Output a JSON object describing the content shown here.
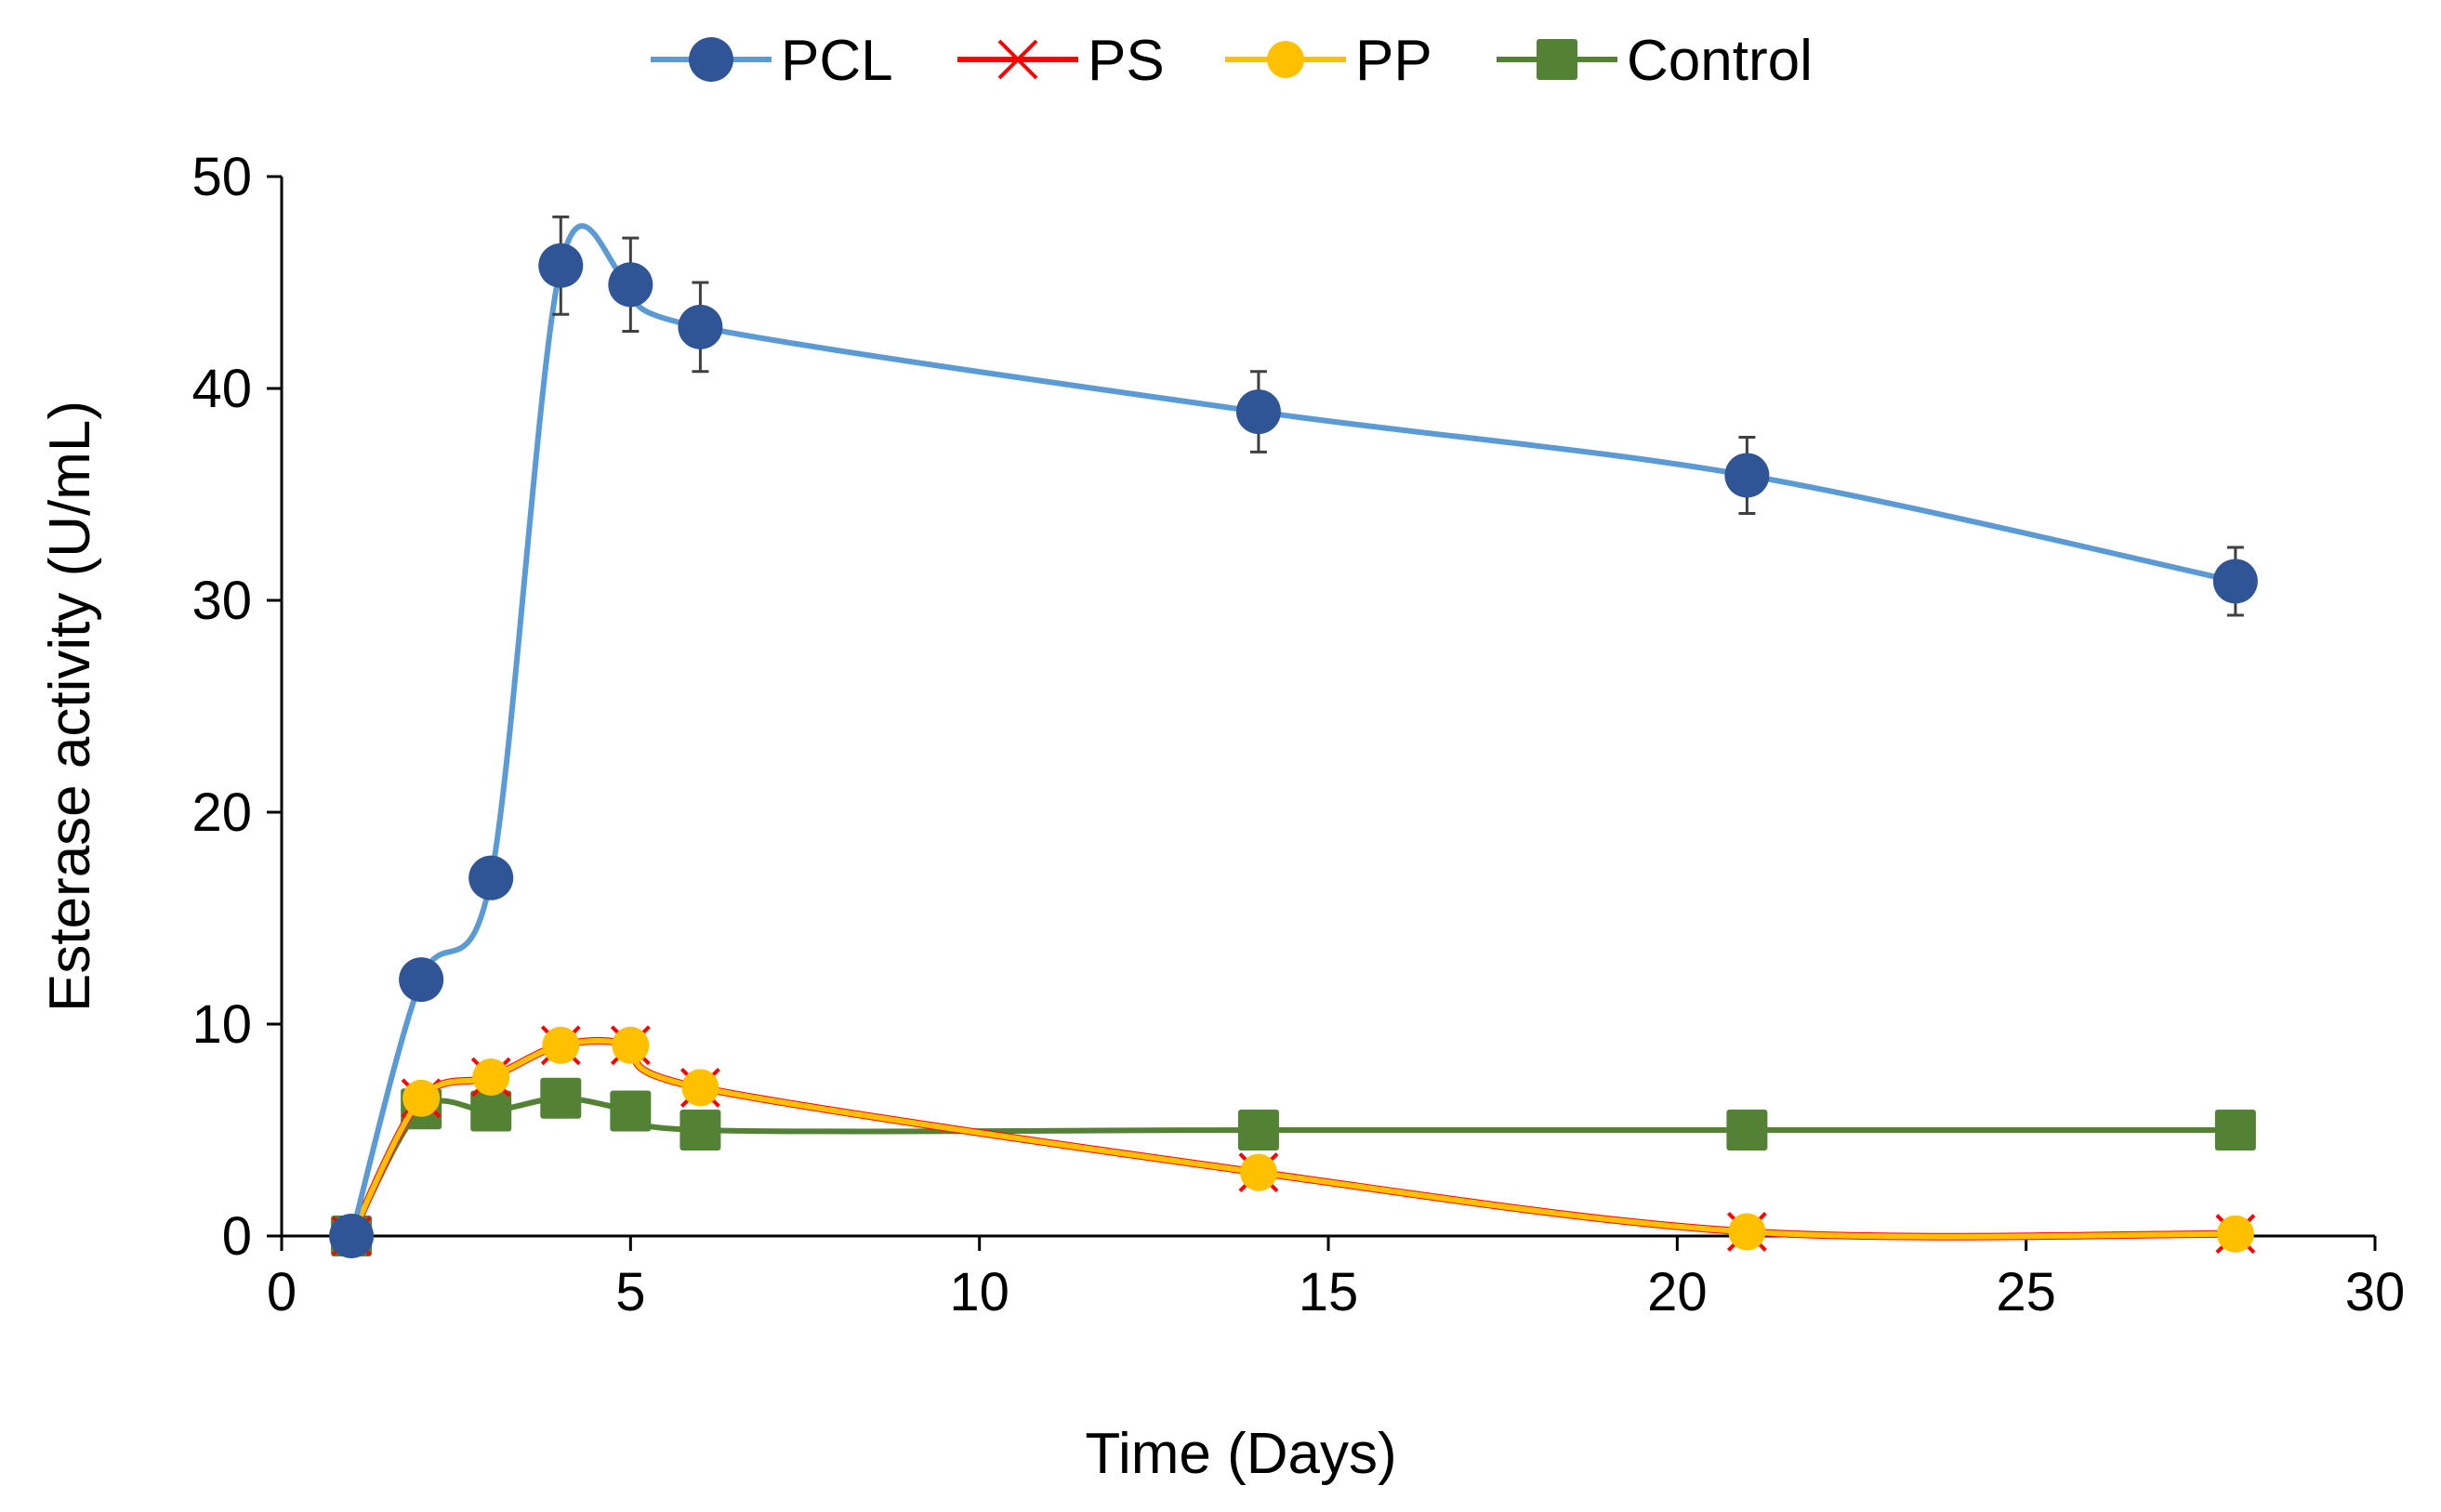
{
  "chart_data": {
    "type": "line",
    "title": "",
    "xlabel": "Time (Days)",
    "ylabel": "Esterase activity (U/mL)",
    "xlim": [
      0,
      30
    ],
    "ylim": [
      0,
      50
    ],
    "xticks": [
      0,
      5,
      10,
      15,
      20,
      25,
      30
    ],
    "yticks": [
      0,
      10,
      20,
      30,
      40,
      50
    ],
    "grid": false,
    "legend_position": "top-center",
    "x": [
      1,
      2,
      3,
      4,
      5,
      6,
      14,
      21,
      28
    ],
    "series": [
      {
        "name": "PCL",
        "color": "#5b9bd5",
        "marker": "circle",
        "marker_color": "#2f5597",
        "values": [
          0,
          12.1,
          16.9,
          45.8,
          44.9,
          42.9,
          38.9,
          35.9,
          30.9
        ],
        "errors": [
          0,
          0,
          0.8,
          2.3,
          2.2,
          2.1,
          1.9,
          1.8,
          1.6
        ]
      },
      {
        "name": "PS",
        "color": "#ff0000",
        "marker": "x",
        "marker_color": "#ff0000",
        "values": [
          0,
          6.5,
          7.5,
          9.0,
          9.0,
          7.0,
          3.0,
          0.2,
          0.1
        ]
      },
      {
        "name": "PP",
        "color": "#ffc000",
        "marker": "circle",
        "marker_color": "#ffc000",
        "values": [
          0,
          6.5,
          7.5,
          9.0,
          9.0,
          7.0,
          3.0,
          0.2,
          0.1
        ]
      },
      {
        "name": "Control",
        "color": "#548235",
        "marker": "square",
        "marker_color": "#548235",
        "values": [
          0,
          6.0,
          5.9,
          6.5,
          5.9,
          5.0,
          5.0,
          5.0,
          5.0
        ]
      }
    ]
  }
}
